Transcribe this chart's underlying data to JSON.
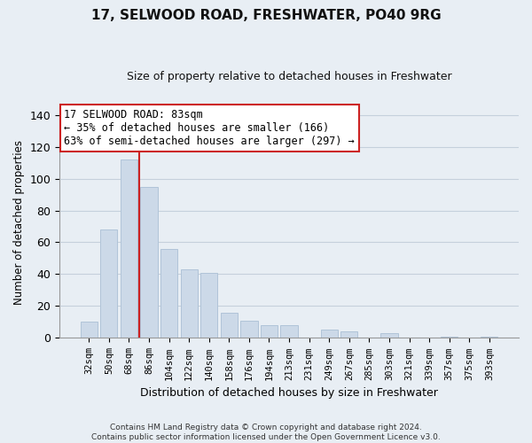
{
  "title": "17, SELWOOD ROAD, FRESHWATER, PO40 9RG",
  "subtitle": "Size of property relative to detached houses in Freshwater",
  "xlabel": "Distribution of detached houses by size in Freshwater",
  "ylabel": "Number of detached properties",
  "bar_labels": [
    "32sqm",
    "50sqm",
    "68sqm",
    "86sqm",
    "104sqm",
    "122sqm",
    "140sqm",
    "158sqm",
    "176sqm",
    "194sqm",
    "213sqm",
    "231sqm",
    "249sqm",
    "267sqm",
    "285sqm",
    "303sqm",
    "321sqm",
    "339sqm",
    "357sqm",
    "375sqm",
    "393sqm"
  ],
  "bar_values": [
    10,
    68,
    112,
    95,
    56,
    43,
    41,
    16,
    11,
    8,
    8,
    0,
    5,
    4,
    0,
    3,
    0,
    0,
    1,
    0,
    1
  ],
  "bar_color": "#ccd9e8",
  "bar_edge_color": "#b0c4d8",
  "ylim": [
    0,
    145
  ],
  "yticks": [
    0,
    20,
    40,
    60,
    80,
    100,
    120,
    140
  ],
  "vline_x_index": 2,
  "vline_color": "#cc2222",
  "annotation_title": "17 SELWOOD ROAD: 83sqm",
  "annotation_line1": "← 35% of detached houses are smaller (166)",
  "annotation_line2": "63% of semi-detached houses are larger (297) →",
  "annotation_box_facecolor": "#ffffff",
  "annotation_box_edgecolor": "#cc2222",
  "footer_line1": "Contains HM Land Registry data © Crown copyright and database right 2024.",
  "footer_line2": "Contains public sector information licensed under the Open Government Licence v3.0.",
  "fig_bg_color": "#e8eef4",
  "plot_bg_color": "#e8eef4",
  "grid_color": "#c5d0dc",
  "title_fontsize": 11,
  "subtitle_fontsize": 9
}
